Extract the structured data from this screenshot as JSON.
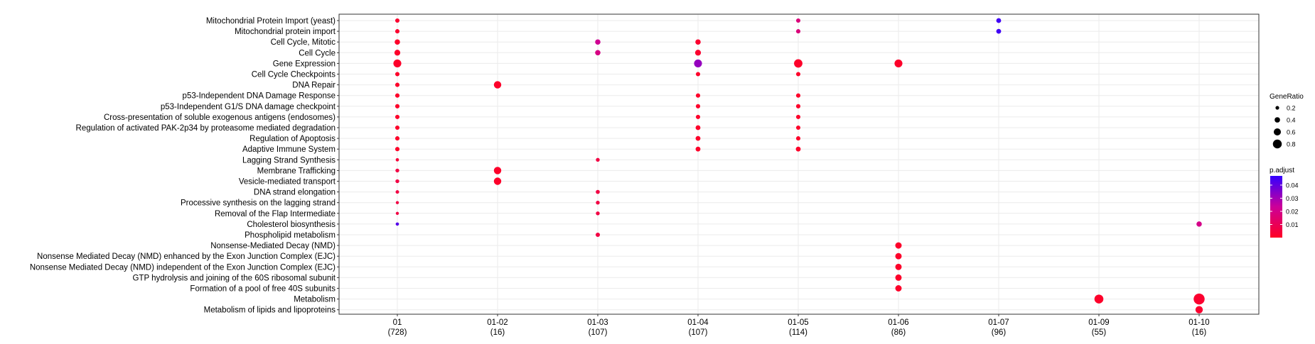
{
  "chart_data": {
    "type": "scatter",
    "title": "",
    "xlabel": "",
    "ylabel": "",
    "categories": [
      "01",
      "01-02",
      "01-03",
      "01-04",
      "01-05",
      "01-06",
      "01-07",
      "01-09",
      "01-10"
    ],
    "category_counts": [
      "(728)",
      "(16)",
      "(107)",
      "(107)",
      "(114)",
      "(86)",
      "(96)",
      "(55)",
      "(16)"
    ],
    "terms": [
      "Mitochondrial Protein Import (yeast)",
      "Mitochondrial protein import",
      "Cell Cycle, Mitotic",
      "Cell Cycle",
      "Gene Expression",
      "Cell Cycle Checkpoints",
      "DNA Repair",
      "p53-Independent DNA Damage Response",
      "p53-Independent G1/S DNA damage checkpoint",
      "Cross-presentation of soluble exogenous antigens (endosomes)",
      "Regulation of activated PAK-2p34 by proteasome mediated degradation",
      "Regulation of Apoptosis",
      "Adaptive Immune System",
      "Lagging Strand Synthesis",
      "Membrane Trafficking",
      "Vesicle-mediated transport",
      "DNA strand elongation",
      "Processive synthesis on the lagging strand",
      "Removal of the Flap Intermediate",
      "Cholesterol biosynthesis",
      "Phospholipid metabolism",
      "Nonsense-Mediated Decay (NMD)",
      "Nonsense Mediated Decay (NMD) enhanced by the Exon Junction Complex (EJC)",
      "Nonsense Mediated Decay (NMD) independent of the Exon Junction Complex (EJC)",
      "GTP hydrolysis and joining of the 60S ribosomal subunit",
      "Formation of a pool of free 40S subunits",
      "Metabolism",
      "Metabolism of lipids and lipoproteins"
    ],
    "points": [
      {
        "x": "01",
        "y": "Mitochondrial Protein Import (yeast)",
        "gene_ratio": 0.2,
        "p_adjust": 0.002
      },
      {
        "x": "01",
        "y": "Mitochondrial protein import",
        "gene_ratio": 0.2,
        "p_adjust": 0.002
      },
      {
        "x": "01",
        "y": "Cell Cycle, Mitotic",
        "gene_ratio": 0.3,
        "p_adjust": 0.001
      },
      {
        "x": "01",
        "y": "Cell Cycle",
        "gene_ratio": 0.35,
        "p_adjust": 0.001
      },
      {
        "x": "01",
        "y": "Gene Expression",
        "gene_ratio": 0.55,
        "p_adjust": 0.001
      },
      {
        "x": "01",
        "y": "Cell Cycle Checkpoints",
        "gene_ratio": 0.2,
        "p_adjust": 0.001
      },
      {
        "x": "01",
        "y": "DNA Repair",
        "gene_ratio": 0.2,
        "p_adjust": 0.001
      },
      {
        "x": "01",
        "y": "p53-Independent DNA Damage Response",
        "gene_ratio": 0.2,
        "p_adjust": 0.001
      },
      {
        "x": "01",
        "y": "p53-Independent G1/S DNA damage checkpoint",
        "gene_ratio": 0.2,
        "p_adjust": 0.001
      },
      {
        "x": "01",
        "y": "Cross-presentation of soluble exogenous antigens (endosomes)",
        "gene_ratio": 0.2,
        "p_adjust": 0.001
      },
      {
        "x": "01",
        "y": "Regulation of activated PAK-2p34 by proteasome mediated degradation",
        "gene_ratio": 0.2,
        "p_adjust": 0.001
      },
      {
        "x": "01",
        "y": "Regulation of Apoptosis",
        "gene_ratio": 0.2,
        "p_adjust": 0.001
      },
      {
        "x": "01",
        "y": "Adaptive Immune System",
        "gene_ratio": 0.2,
        "p_adjust": 0.001
      },
      {
        "x": "01",
        "y": "Lagging Strand Synthesis",
        "gene_ratio": 0.1,
        "p_adjust": 0.004
      },
      {
        "x": "01",
        "y": "Membrane Trafficking",
        "gene_ratio": 0.15,
        "p_adjust": 0.006
      },
      {
        "x": "01",
        "y": "Vesicle-mediated transport",
        "gene_ratio": 0.15,
        "p_adjust": 0.006
      },
      {
        "x": "01",
        "y": "DNA strand elongation",
        "gene_ratio": 0.12,
        "p_adjust": 0.006
      },
      {
        "x": "01",
        "y": "Processive synthesis on the lagging strand",
        "gene_ratio": 0.08,
        "p_adjust": 0.006
      },
      {
        "x": "01",
        "y": "Removal of the Flap Intermediate",
        "gene_ratio": 0.08,
        "p_adjust": 0.006
      },
      {
        "x": "01",
        "y": "Cholesterol biosynthesis",
        "gene_ratio": 0.1,
        "p_adjust": 0.042
      },
      {
        "x": "01-02",
        "y": "DNA Repair",
        "gene_ratio": 0.5,
        "p_adjust": 0.001
      },
      {
        "x": "01-02",
        "y": "Membrane Trafficking",
        "gene_ratio": 0.5,
        "p_adjust": 0.001
      },
      {
        "x": "01-02",
        "y": "Vesicle-mediated transport",
        "gene_ratio": 0.5,
        "p_adjust": 0.001
      },
      {
        "x": "01-03",
        "y": "Cell Cycle, Mitotic",
        "gene_ratio": 0.3,
        "p_adjust": 0.022
      },
      {
        "x": "01-03",
        "y": "Cell Cycle",
        "gene_ratio": 0.3,
        "p_adjust": 0.019
      },
      {
        "x": "01-03",
        "y": "Lagging Strand Synthesis",
        "gene_ratio": 0.15,
        "p_adjust": 0.006
      },
      {
        "x": "01-03",
        "y": "DNA strand elongation",
        "gene_ratio": 0.17,
        "p_adjust": 0.006
      },
      {
        "x": "01-03",
        "y": "Processive synthesis on the lagging strand",
        "gene_ratio": 0.15,
        "p_adjust": 0.006
      },
      {
        "x": "01-03",
        "y": "Removal of the Flap Intermediate",
        "gene_ratio": 0.15,
        "p_adjust": 0.006
      },
      {
        "x": "01-03",
        "y": "Phospholipid metabolism",
        "gene_ratio": 0.2,
        "p_adjust": 0.006
      },
      {
        "x": "01-04",
        "y": "Cell Cycle, Mitotic",
        "gene_ratio": 0.3,
        "p_adjust": 0.002
      },
      {
        "x": "01-04",
        "y": "Cell Cycle",
        "gene_ratio": 0.35,
        "p_adjust": 0.002
      },
      {
        "x": "01-04",
        "y": "Gene Expression",
        "gene_ratio": 0.55,
        "p_adjust": 0.032
      },
      {
        "x": "01-04",
        "y": "Cell Cycle Checkpoints",
        "gene_ratio": 0.2,
        "p_adjust": 0.001
      },
      {
        "x": "01-04",
        "y": "p53-Independent DNA Damage Response",
        "gene_ratio": 0.2,
        "p_adjust": 0.001
      },
      {
        "x": "01-04",
        "y": "p53-Independent G1/S DNA damage checkpoint",
        "gene_ratio": 0.2,
        "p_adjust": 0.001
      },
      {
        "x": "01-04",
        "y": "Cross-presentation of soluble exogenous antigens (endosomes)",
        "gene_ratio": 0.2,
        "p_adjust": 0.001
      },
      {
        "x": "01-04",
        "y": "Regulation of activated PAK-2p34 by proteasome mediated degradation",
        "gene_ratio": 0.25,
        "p_adjust": 0.001
      },
      {
        "x": "01-04",
        "y": "Regulation of Apoptosis",
        "gene_ratio": 0.25,
        "p_adjust": 0.001
      },
      {
        "x": "01-04",
        "y": "Adaptive Immune System",
        "gene_ratio": 0.25,
        "p_adjust": 0.001
      },
      {
        "x": "01-05",
        "y": "Mitochondrial Protein Import (yeast)",
        "gene_ratio": 0.2,
        "p_adjust": 0.017
      },
      {
        "x": "01-05",
        "y": "Mitochondrial protein import",
        "gene_ratio": 0.2,
        "p_adjust": 0.017
      },
      {
        "x": "01-05",
        "y": "Gene Expression",
        "gene_ratio": 0.6,
        "p_adjust": 0.001
      },
      {
        "x": "01-05",
        "y": "Cell Cycle Checkpoints",
        "gene_ratio": 0.2,
        "p_adjust": 0.001
      },
      {
        "x": "01-05",
        "y": "p53-Independent DNA Damage Response",
        "gene_ratio": 0.2,
        "p_adjust": 0.001
      },
      {
        "x": "01-05",
        "y": "p53-Independent G1/S DNA damage checkpoint",
        "gene_ratio": 0.2,
        "p_adjust": 0.001
      },
      {
        "x": "01-05",
        "y": "Cross-presentation of soluble exogenous antigens (endosomes)",
        "gene_ratio": 0.2,
        "p_adjust": 0.001
      },
      {
        "x": "01-05",
        "y": "Regulation of activated PAK-2p34 by proteasome mediated degradation",
        "gene_ratio": 0.2,
        "p_adjust": 0.001
      },
      {
        "x": "01-05",
        "y": "Regulation of Apoptosis",
        "gene_ratio": 0.2,
        "p_adjust": 0.001
      },
      {
        "x": "01-05",
        "y": "Adaptive Immune System",
        "gene_ratio": 0.25,
        "p_adjust": 0.001
      },
      {
        "x": "01-06",
        "y": "Gene Expression",
        "gene_ratio": 0.55,
        "p_adjust": 0.001
      },
      {
        "x": "01-06",
        "y": "Nonsense-Mediated Decay (NMD)",
        "gene_ratio": 0.4,
        "p_adjust": 0.001
      },
      {
        "x": "01-06",
        "y": "Nonsense Mediated Decay (NMD) enhanced by the Exon Junction Complex (EJC)",
        "gene_ratio": 0.4,
        "p_adjust": 0.001
      },
      {
        "x": "01-06",
        "y": "Nonsense Mediated Decay (NMD) independent of the Exon Junction Complex (EJC)",
        "gene_ratio": 0.4,
        "p_adjust": 0.001
      },
      {
        "x": "01-06",
        "y": "GTP hydrolysis and joining of the 60S ribosomal subunit",
        "gene_ratio": 0.4,
        "p_adjust": 0.001
      },
      {
        "x": "01-06",
        "y": "Formation of a pool of free 40S subunits",
        "gene_ratio": 0.4,
        "p_adjust": 0.001
      },
      {
        "x": "01-07",
        "y": "Mitochondrial Protein Import (yeast)",
        "gene_ratio": 0.25,
        "p_adjust": 0.045
      },
      {
        "x": "01-07",
        "y": "Mitochondrial protein import",
        "gene_ratio": 0.25,
        "p_adjust": 0.045
      },
      {
        "x": "01-09",
        "y": "Metabolism",
        "gene_ratio": 0.65,
        "p_adjust": 0.001
      },
      {
        "x": "01-10",
        "y": "Cholesterol biosynthesis",
        "gene_ratio": 0.3,
        "p_adjust": 0.02
      },
      {
        "x": "01-10",
        "y": "Metabolism",
        "gene_ratio": 0.85,
        "p_adjust": 0.002
      },
      {
        "x": "01-10",
        "y": "Metabolism of lipids and lipoproteins",
        "gene_ratio": 0.5,
        "p_adjust": 0.002
      }
    ],
    "size_legend": {
      "title": "GeneRatio",
      "values": [
        0.2,
        0.4,
        0.6,
        0.8
      ],
      "labels": [
        "0.2",
        "0.4",
        "0.6",
        "0.8"
      ]
    },
    "color_legend": {
      "title": "p.adjust",
      "breaks": [
        0.04,
        0.03,
        0.02,
        0.01
      ],
      "labels": [
        "0.04",
        "0.03",
        "0.02",
        "0.01"
      ],
      "low_color": "#ff0025",
      "high_color": "#3300ff",
      "range": [
        0.0,
        0.047
      ]
    },
    "grid": true,
    "legend_position": "right"
  }
}
